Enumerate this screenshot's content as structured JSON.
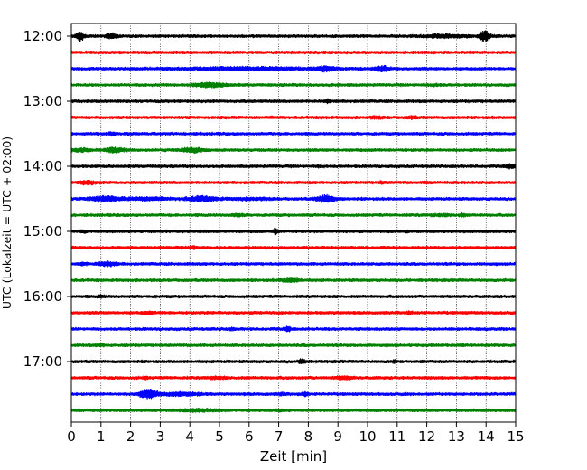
{
  "chart_data": {
    "type": "line",
    "title": "",
    "xlabel": "Zeit  [min]",
    "ylabel": "UTC (Lokalzeit = UTC + 02:00)",
    "xlim": [
      0,
      15
    ],
    "x_ticks": [
      "0",
      "1",
      "2",
      "3",
      "4",
      "5",
      "6",
      "7",
      "8",
      "9",
      "10",
      "11",
      "12",
      "13",
      "14",
      "15"
    ],
    "y_ticks": [
      {
        "row": 0,
        "label": "12:00"
      },
      {
        "row": 4,
        "label": "13:00"
      },
      {
        "row": 8,
        "label": "14:00"
      },
      {
        "row": 12,
        "label": "15:00"
      },
      {
        "row": 16,
        "label": "16:00"
      },
      {
        "row": 20,
        "label": "17:00"
      }
    ],
    "minutes_per_trace": 15,
    "grid": "vertical dotted at each minute",
    "trace_colors": [
      "#000000",
      "#ff0000",
      "#0000ff",
      "#008000"
    ],
    "series": [
      {
        "start": "12:00",
        "events": [
          [
            0.3,
            3.5,
            0.25
          ],
          [
            1.35,
            2.2,
            0.35
          ],
          [
            12.6,
            1.6,
            1.6
          ],
          [
            13.95,
            3.5,
            0.35
          ]
        ]
      },
      {
        "start": "12:15",
        "events": []
      },
      {
        "start": "12:30",
        "events": [
          [
            6.0,
            1.6,
            4.5
          ],
          [
            8.6,
            2.2,
            0.5
          ],
          [
            10.5,
            2.2,
            0.5
          ]
        ]
      },
      {
        "start": "12:45",
        "events": [
          [
            4.7,
            2.0,
            1.0
          ],
          [
            12.3,
            1.3,
            0.4
          ]
        ]
      },
      {
        "start": "13:00",
        "events": [
          [
            8.65,
            1.8,
            0.2
          ]
        ]
      },
      {
        "start": "13:15",
        "events": [
          [
            10.3,
            1.4,
            0.4
          ],
          [
            11.5,
            1.5,
            0.3
          ]
        ]
      },
      {
        "start": "13:30",
        "events": [
          [
            1.35,
            1.5,
            0.3
          ]
        ]
      },
      {
        "start": "13:45",
        "events": [
          [
            0.35,
            1.6,
            0.6
          ],
          [
            1.5,
            2.2,
            0.6
          ],
          [
            4.1,
            2.0,
            0.8
          ]
        ]
      },
      {
        "start": "14:00",
        "events": [
          [
            8.4,
            1.3,
            0.2
          ],
          [
            14.8,
            1.8,
            0.35
          ]
        ]
      },
      {
        "start": "14:15",
        "events": [
          [
            0.55,
            1.8,
            0.5
          ],
          [
            10.5,
            1.4,
            0.2
          ],
          [
            12.0,
            1.4,
            0.2
          ]
        ]
      },
      {
        "start": "14:30",
        "events": [
          [
            1.1,
            2.2,
            1.0
          ],
          [
            2.5,
            1.6,
            1.5
          ],
          [
            4.4,
            2.2,
            1.0
          ],
          [
            6.0,
            1.4,
            1.4
          ],
          [
            8.6,
            2.6,
            0.6
          ]
        ]
      },
      {
        "start": "14:45",
        "events": [
          [
            5.6,
            1.5,
            0.4
          ],
          [
            12.5,
            1.3,
            0.8
          ],
          [
            13.2,
            1.6,
            0.2
          ]
        ]
      },
      {
        "start": "15:00",
        "events": [
          [
            0.4,
            1.4,
            0.2
          ],
          [
            6.9,
            2.6,
            0.15
          ],
          [
            11.3,
            1.4,
            0.2
          ]
        ]
      },
      {
        "start": "15:15",
        "events": [
          [
            4.1,
            1.7,
            0.2
          ]
        ]
      },
      {
        "start": "15:30",
        "events": [
          [
            0.4,
            1.5,
            0.3
          ],
          [
            1.2,
            2.0,
            0.6
          ]
        ]
      },
      {
        "start": "15:45",
        "events": [
          [
            7.4,
            1.8,
            0.6
          ]
        ]
      },
      {
        "start": "16:00",
        "events": [
          [
            1.0,
            1.5,
            0.2
          ]
        ]
      },
      {
        "start": "16:15",
        "events": [
          [
            2.6,
            1.5,
            0.3
          ],
          [
            11.4,
            1.5,
            0.2
          ]
        ]
      },
      {
        "start": "16:30",
        "events": [
          [
            5.4,
            1.4,
            0.2
          ],
          [
            7.3,
            2.2,
            0.2
          ]
        ]
      },
      {
        "start": "16:45",
        "events": [
          [
            1.0,
            1.3,
            0.3
          ],
          [
            13.2,
            1.3,
            0.2
          ]
        ]
      },
      {
        "start": "17:00",
        "events": [
          [
            7.8,
            2.2,
            0.2
          ],
          [
            10.9,
            1.5,
            0.2
          ]
        ]
      },
      {
        "start": "17:15",
        "events": [
          [
            2.5,
            1.4,
            0.2
          ],
          [
            4.9,
            1.4,
            0.6
          ],
          [
            9.2,
            1.6,
            0.6
          ]
        ]
      },
      {
        "start": "17:30",
        "events": [
          [
            2.6,
            3.2,
            0.6
          ],
          [
            3.7,
            1.8,
            1.2
          ],
          [
            7.1,
            1.5,
            0.2
          ],
          [
            7.9,
            1.8,
            0.2
          ]
        ]
      },
      {
        "start": "17:45",
        "events": [
          [
            4.3,
            1.5,
            1.2
          ],
          [
            7.0,
            1.3,
            0.3
          ]
        ]
      }
    ]
  }
}
